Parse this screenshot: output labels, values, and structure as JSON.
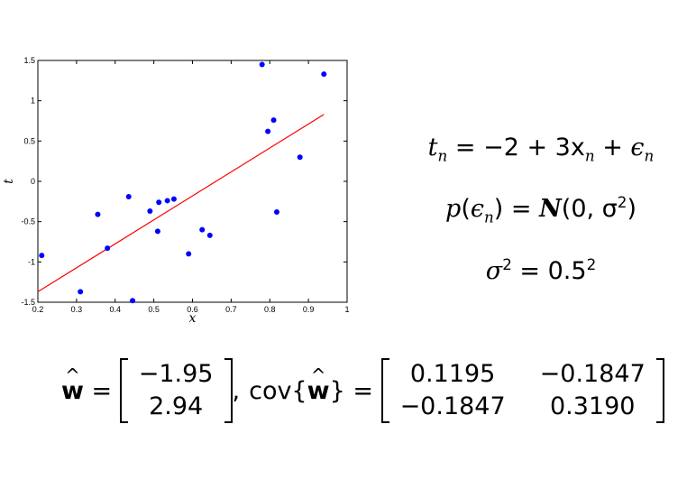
{
  "chart_data": {
    "type": "scatter",
    "xlabel": "x",
    "ylabel": "t",
    "xlim": [
      0.2,
      1.0
    ],
    "ylim": [
      -1.5,
      1.5
    ],
    "xticks": [
      "0.2",
      "0.3",
      "0.4",
      "0.5",
      "0.6",
      "0.7",
      "0.8",
      "0.9",
      "1"
    ],
    "yticks": [
      "-1.5",
      "-1",
      "-0.5",
      "0",
      "0.5",
      "1",
      "1.5"
    ],
    "points": [
      {
        "x": 0.21,
        "y": -0.92
      },
      {
        "x": 0.31,
        "y": -1.37
      },
      {
        "x": 0.355,
        "y": -0.41
      },
      {
        "x": 0.38,
        "y": -0.83
      },
      {
        "x": 0.435,
        "y": -0.19
      },
      {
        "x": 0.445,
        "y": -1.48
      },
      {
        "x": 0.49,
        "y": -0.37
      },
      {
        "x": 0.51,
        "y": -0.62
      },
      {
        "x": 0.513,
        "y": -0.26
      },
      {
        "x": 0.535,
        "y": -0.24
      },
      {
        "x": 0.552,
        "y": -0.22
      },
      {
        "x": 0.59,
        "y": -0.9
      },
      {
        "x": 0.625,
        "y": -0.6
      },
      {
        "x": 0.645,
        "y": -0.67
      },
      {
        "x": 0.78,
        "y": 1.45
      },
      {
        "x": 0.795,
        "y": 0.62
      },
      {
        "x": 0.81,
        "y": 0.76
      },
      {
        "x": 0.818,
        "y": -0.38
      },
      {
        "x": 0.878,
        "y": 0.3
      },
      {
        "x": 0.94,
        "y": 1.33
      }
    ],
    "fit_line": {
      "x": [
        0.2,
        0.94
      ],
      "y": [
        -1.37,
        0.83
      ]
    },
    "colors": {
      "points": "#0000ff",
      "line": "#ff0000"
    }
  },
  "equations": {
    "model": {
      "t": "t",
      "t_sub": "n",
      "rhs": " = −2 + 3x",
      "x_sub": "n",
      "plus": " + ",
      "eps": "ϵ",
      "eps_sub": "n"
    },
    "noise": {
      "p": "p",
      "lpar": "(",
      "eps": "ϵ",
      "eps_sub": "n",
      "mid": ") = ",
      "N": "N",
      "args": "(0, σ",
      "args_sup": "2",
      "rpar": ")"
    },
    "variance": {
      "sigma": "σ",
      "sigma_sup": "2",
      "rhs": " = 0.5",
      "rhs_sup": "2"
    }
  },
  "estimates": {
    "w_symbol": "w",
    "hat": "^",
    "equals": " = ",
    "w": [
      "−1.95",
      "2.94"
    ],
    "comma": ",",
    "cov_label": "cov{",
    "cov_close": "}",
    "cov": [
      "0.1195",
      "−0.1847",
      "−0.1847",
      "0.3190"
    ]
  }
}
